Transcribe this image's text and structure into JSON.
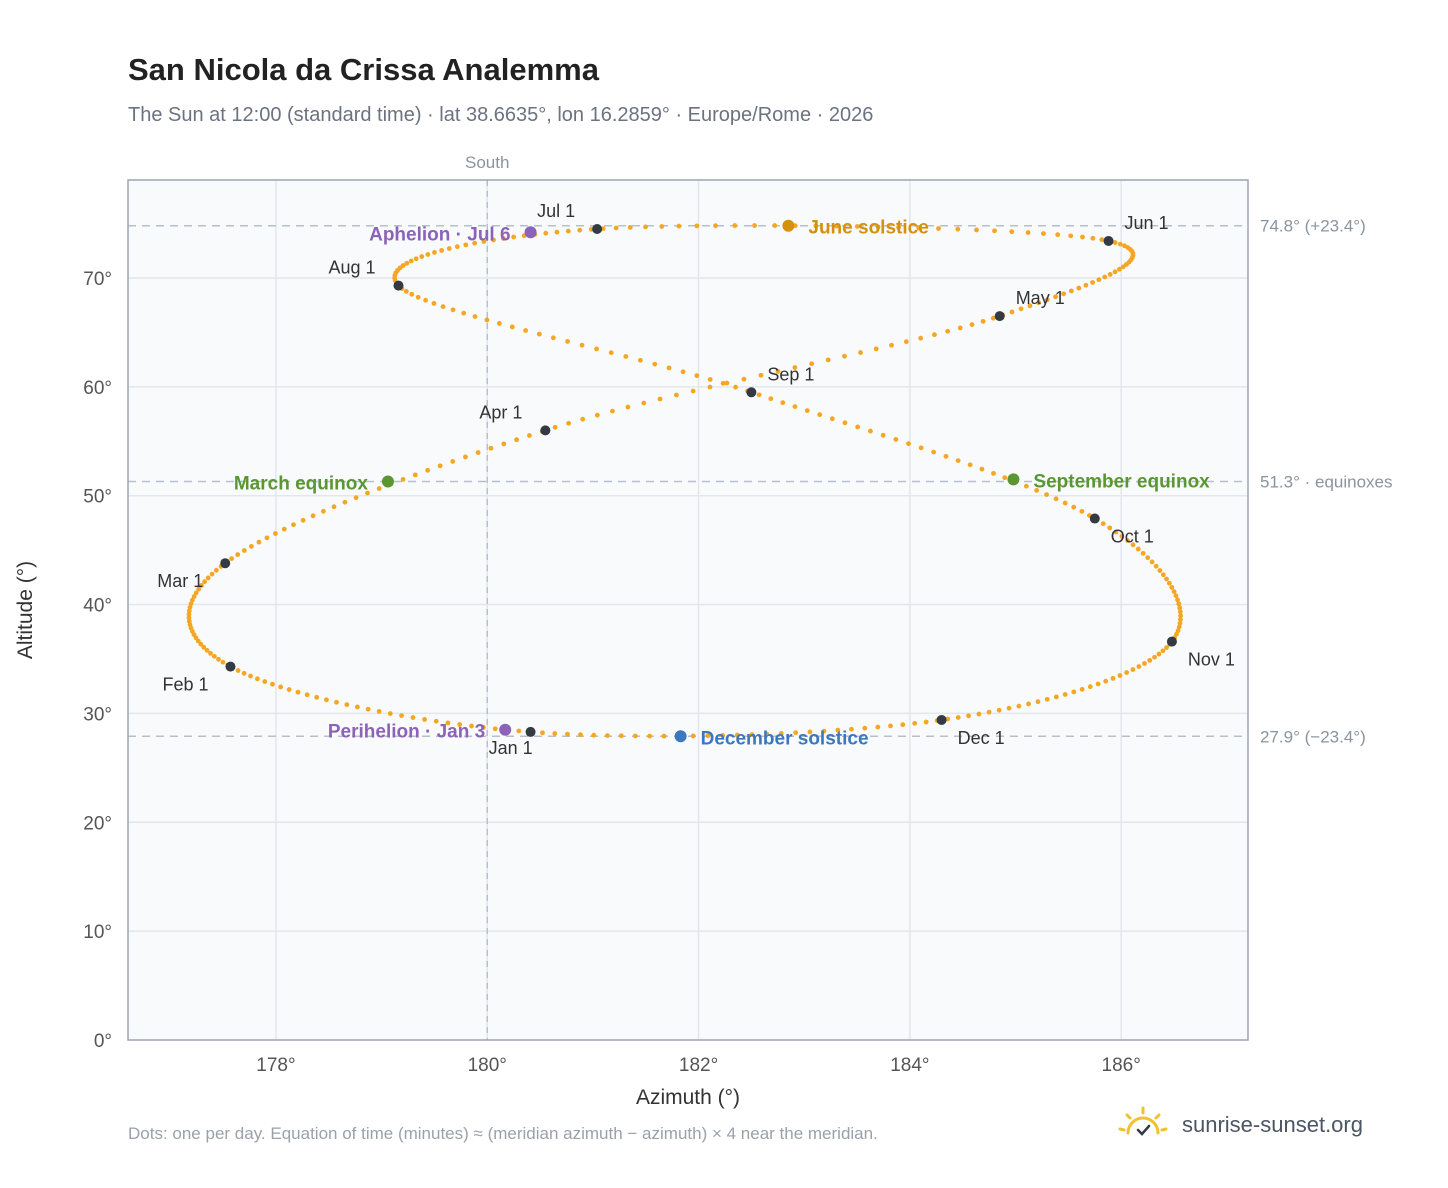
{
  "header": {
    "title": "San Nicola da Crissa Analemma",
    "subtitle": "The Sun at 12:00 (standard time) · lat 38.6635°, lon 16.2859° · Europe/Rome · 2026"
  },
  "footer": {
    "note": "Dots: one per day. Equation of time (minutes) ≈ (meridian azimuth − azimuth) × 4 near the meridian.",
    "brand": "sunrise-sunset.org"
  },
  "colors": {
    "curve": "#f5a623",
    "month_marker": "#333a44",
    "solstice_june": "#d4900e",
    "solstice_december": "#3b78c0",
    "equinox": "#5a9632",
    "apsis": "#8b63b8",
    "grid": "#e3e7ed",
    "reference_line": "#b6c0cc",
    "axis_frame": "#9aa5b3",
    "plot_bg": "#f8fafc",
    "brand_icon": "#f2c12e"
  },
  "chart_data": {
    "type": "scatter",
    "xlabel": "Azimuth (°)",
    "ylabel": "Altitude (°)",
    "xlim": [
      176.6,
      187.2
    ],
    "ylim": [
      0,
      79
    ],
    "x_ticks": [
      178,
      180,
      182,
      184,
      186
    ],
    "x_tick_labels": [
      "178°",
      "180°",
      "182°",
      "184°",
      "186°"
    ],
    "y_ticks": [
      0,
      10,
      20,
      30,
      40,
      50,
      60,
      70
    ],
    "y_tick_labels": [
      "0°",
      "10°",
      "20°",
      "30°",
      "40°",
      "50°",
      "60°",
      "70°"
    ],
    "grid": true,
    "south_line": {
      "x": 180,
      "label": "South"
    },
    "reference_lines": [
      {
        "y": 74.8,
        "label": "74.8° (+23.4°)"
      },
      {
        "y": 51.3,
        "label": "51.3° · equinoxes"
      },
      {
        "y": 27.9,
        "label": "27.9° (−23.4°)"
      }
    ],
    "daily_points": {
      "count": 365,
      "description_series": "one per day",
      "month_starts": [
        {
          "label": "Jan 1",
          "x": 180.41,
          "y": 28.3
        },
        {
          "label": "Feb 1",
          "x": 177.57,
          "y": 34.3
        },
        {
          "label": "Mar 1",
          "x": 177.52,
          "y": 43.8
        },
        {
          "label": "Apr 1",
          "x": 180.55,
          "y": 56.0
        },
        {
          "label": "May 1",
          "x": 184.85,
          "y": 66.5
        },
        {
          "label": "Jun 1",
          "x": 185.88,
          "y": 73.4
        },
        {
          "label": "Jul 1",
          "x": 181.04,
          "y": 74.5
        },
        {
          "label": "Aug 1",
          "x": 179.16,
          "y": 69.3
        },
        {
          "label": "Sep 1",
          "x": 182.5,
          "y": 59.5
        },
        {
          "label": "Oct 1",
          "x": 185.75,
          "y": 47.9
        },
        {
          "label": "Nov 1",
          "x": 186.48,
          "y": 36.6
        },
        {
          "label": "Dec 1",
          "x": 184.3,
          "y": 29.4
        },
        {
          "label": "",
          "x": 180.41,
          "y": 28.3
        }
      ]
    },
    "events": [
      {
        "label": "June solstice",
        "x": 182.85,
        "y": 74.8,
        "color_key": "solstice_june"
      },
      {
        "label": "December solstice",
        "x": 181.83,
        "y": 27.9,
        "color_key": "solstice_december"
      },
      {
        "label": "March equinox",
        "x": 179.06,
        "y": 51.3,
        "color_key": "equinox"
      },
      {
        "label": "September equinox",
        "x": 184.98,
        "y": 51.5,
        "color_key": "equinox"
      },
      {
        "label": "Aphelion · Jul 6",
        "x": 180.41,
        "y": 74.2,
        "color_key": "apsis"
      },
      {
        "label": "Perihelion · Jan 3",
        "x": 180.17,
        "y": 28.5,
        "color_key": "apsis"
      }
    ]
  }
}
